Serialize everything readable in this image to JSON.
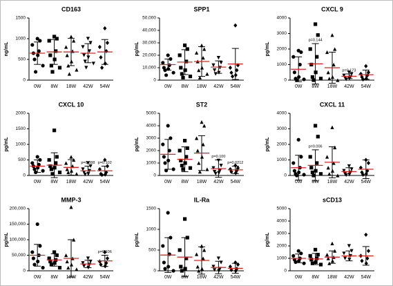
{
  "chart_data": [
    {
      "type": "dot",
      "title": "CD163",
      "ylabel": "ng/mL",
      "categories": [
        "0W",
        "8W",
        "18W",
        "42W",
        "54W"
      ],
      "ylim": [
        0,
        1500
      ],
      "yticks": [
        0,
        500,
        1000,
        1500
      ],
      "groups": [
        {
          "points": [
            1000,
            950,
            850,
            700,
            650,
            600,
            500,
            350,
            200
          ],
          "mean": 650,
          "sd": 270
        },
        {
          "points": [
            1050,
            1000,
            950,
            700,
            600,
            500,
            350,
            300,
            200
          ],
          "mean": 680,
          "sd": 300
        },
        {
          "points": [
            1050,
            950,
            800,
            700,
            600,
            450,
            350,
            250,
            150
          ],
          "mean": 680,
          "sd": 330
        },
        {
          "points": [
            1000,
            900,
            800,
            700,
            600,
            550,
            450,
            400,
            300
          ],
          "mean": 650,
          "sd": 230
        },
        {
          "points": [
            1250,
            900,
            800,
            700,
            550,
            400,
            300
          ],
          "mean": 680,
          "sd": 300
        }
      ]
    },
    {
      "type": "dot",
      "title": "SPP1",
      "ylabel": "pg/mL",
      "categories": [
        "0W",
        "8W",
        "18W",
        "42W",
        "54W"
      ],
      "ylim": [
        0,
        50000
      ],
      "yticks": [
        0,
        {
          "value": 10000,
          "label": "10,000"
        },
        {
          "value": 20000,
          "label": "20,000"
        },
        {
          "value": 30000,
          "label": "30,000"
        },
        {
          "value": 40000,
          "label": "40,000"
        },
        {
          "value": 50000,
          "label": "50,000"
        }
      ],
      "groups": [
        {
          "points": [
            20000,
            17000,
            14000,
            12000,
            10000,
            9000,
            8000,
            6000,
            4000
          ],
          "mean": 12500,
          "sd": 4500
        },
        {
          "points": [
            28000,
            25000,
            20000,
            15000,
            10000,
            8000,
            5000,
            3000,
            2000
          ],
          "mean": 14500,
          "sd": 10000
        },
        {
          "points": [
            28000,
            25000,
            22000,
            18000,
            15000,
            10000,
            8000,
            5000,
            2000
          ],
          "mean": 15000,
          "sd": 12000
        },
        {
          "points": [
            18000,
            14000,
            12000,
            10000,
            8000,
            6000,
            5000
          ],
          "mean": 10500,
          "sd": 5000
        },
        {
          "points": [
            44000,
            12000,
            10000,
            8000,
            6000,
            4000,
            3000
          ],
          "mean": 13000,
          "sd": 12500
        }
      ]
    },
    {
      "type": "dot",
      "title": "CXCL 9",
      "ylabel": "pg/mL",
      "categories": [
        "0W",
        "8W",
        "18W",
        "42W",
        "54W"
      ],
      "ylim": [
        0,
        4000
      ],
      "yticks": [
        0,
        1000,
        2000,
        3000,
        4000
      ],
      "groups": [
        {
          "points": [
            1900,
            1800,
            1500,
            1000,
            500,
            200,
            100,
            50,
            0
          ],
          "mean": 700,
          "sd": 800
        },
        {
          "points": [
            3600,
            2900,
            2000,
            1500,
            1000,
            500,
            200,
            100,
            0
          ],
          "mean": 1050,
          "sd": 1300
        },
        {
          "points": [
            2900,
            2000,
            1800,
            1000,
            500,
            200,
            100,
            0
          ],
          "mean": 800,
          "sd": 1000
        },
        {
          "points": [
            500,
            400,
            300,
            200,
            150,
            100,
            50
          ],
          "mean": 250,
          "sd": 150
        },
        {
          "points": [
            900,
            500,
            400,
            300,
            200,
            100,
            50
          ],
          "mean": 350,
          "sd": 300
        }
      ],
      "annotations": [
        {
          "category": "8W",
          "text": "p=0.144"
        },
        {
          "category": "42W",
          "text": "p=0.173"
        }
      ]
    },
    {
      "type": "dot",
      "title": "CXCL 10",
      "ylabel": "pg/mL",
      "categories": [
        "0W",
        "8W",
        "18W",
        "42W",
        "54W"
      ],
      "ylim": [
        0,
        2000
      ],
      "yticks": [
        0,
        500,
        1000,
        1500,
        2000
      ],
      "groups": [
        {
          "points": [
            600,
            500,
            400,
            350,
            300,
            250,
            200,
            150,
            100
          ],
          "mean": 300,
          "sd": 200
        },
        {
          "points": [
            1450,
            600,
            500,
            400,
            300,
            250,
            200,
            100,
            50
          ],
          "mean": 330,
          "sd": 400
        },
        {
          "points": [
            600,
            500,
            400,
            300,
            200,
            150,
            100,
            50
          ],
          "mean": 260,
          "sd": 250
        },
        {
          "points": [
            400,
            300,
            200,
            150,
            100,
            50,
            30
          ],
          "mean": 150,
          "sd": 150
        },
        {
          "points": [
            500,
            300,
            200,
            100,
            50,
            30,
            20
          ],
          "mean": 150,
          "sd": 150
        }
      ],
      "annotations": [
        {
          "category": "42W",
          "text": "p=0.088"
        },
        {
          "category": "54W",
          "text": "p=0.102"
        }
      ]
    },
    {
      "type": "dot",
      "title": "ST2",
      "ylabel": "pg/mL",
      "categories": [
        "0W",
        "8W",
        "18W",
        "42W",
        "54W"
      ],
      "ylim": [
        0,
        5000
      ],
      "yticks": [
        0,
        1000,
        2000,
        3000,
        4000,
        5000
      ],
      "groups": [
        {
          "points": [
            4000,
            3000,
            2500,
            2000,
            1500,
            1200,
            1000,
            500,
            400
          ],
          "mean": 1700,
          "sd": 1200
        },
        {
          "points": [
            2800,
            2200,
            2000,
            1500,
            1200,
            1000,
            800,
            600,
            500
          ],
          "mean": 1300,
          "sd": 1000
        },
        {
          "points": [
            4300,
            4000,
            3000,
            2500,
            2000,
            1500,
            1000,
            500,
            300
          ],
          "mean": 1800,
          "sd": 1400
        },
        {
          "points": [
            1200,
            800,
            600,
            400,
            300,
            200,
            150
          ],
          "mean": 550,
          "sd": 700
        },
        {
          "points": [
            800,
            600,
            500,
            400,
            300,
            200
          ],
          "mean": 450,
          "sd": 300
        }
      ],
      "annotations": [
        {
          "category": "42W",
          "text": "p=0.100"
        },
        {
          "category": "54W",
          "text": "p=0.0212"
        }
      ]
    },
    {
      "type": "dot",
      "title": "CXCL 11",
      "ylabel": "pg/mL",
      "categories": [
        "0W",
        "8W",
        "18W",
        "42W",
        "54W"
      ],
      "ylim": [
        0,
        4000
      ],
      "yticks": [
        0,
        1000,
        2000,
        3000,
        4000
      ],
      "groups": [
        {
          "points": [
            2300,
            1200,
            800,
            500,
            300,
            200,
            100,
            50,
            0
          ],
          "mean": 500,
          "sd": 800
        },
        {
          "points": [
            3200,
            2500,
            1200,
            800,
            500,
            300,
            200,
            100,
            0
          ],
          "mean": 650,
          "sd": 1000
        },
        {
          "points": [
            3100,
            1800,
            1200,
            800,
            500,
            300,
            100,
            0
          ],
          "mean": 850,
          "sd": 1000
        },
        {
          "points": [
            600,
            400,
            300,
            200,
            100,
            50,
            20
          ],
          "mean": 250,
          "sd": 250
        },
        {
          "points": [
            1000,
            800,
            500,
            300,
            200,
            100,
            50
          ],
          "mean": 400,
          "sd": 600
        }
      ],
      "annotations": [
        {
          "category": "8W",
          "text": "p=0.006"
        }
      ]
    },
    {
      "type": "dot",
      "title": "MMP-3",
      "ylabel": "pg/mL",
      "categories": [
        "0W",
        "8W",
        "18W",
        "42W",
        "54W"
      ],
      "ylim": [
        0,
        200000
      ],
      "yticks": [
        0,
        {
          "value": 50000,
          "label": "50,000"
        },
        {
          "value": 100000,
          "label": "100,000"
        },
        {
          "value": 150000,
          "label": "150,000"
        },
        {
          "value": 200000,
          "label": "200,000"
        }
      ],
      "groups": [
        {
          "points": [
            150000,
            80000,
            60000,
            50000,
            40000,
            30000,
            20000,
            10000
          ],
          "mean": 50000,
          "sd": 35000
        },
        {
          "points": [
            60000,
            50000,
            40000,
            35000,
            30000,
            25000,
            20000,
            10000
          ],
          "mean": 35000,
          "sd": 20000
        },
        {
          "points": [
            205000,
            100000,
            50000,
            40000,
            30000,
            20000,
            10000,
            5000
          ],
          "mean": 40000,
          "sd": 60000
        },
        {
          "points": [
            40000,
            30000,
            25000,
            20000,
            15000,
            10000
          ],
          "mean": 22000,
          "sd": 12000
        },
        {
          "points": [
            60000,
            40000,
            30000,
            25000,
            20000,
            15000
          ],
          "mean": 32000,
          "sd": 18000
        }
      ],
      "annotations": [
        {
          "category": "54W",
          "text": "p=0.106"
        }
      ]
    },
    {
      "type": "dot",
      "title": "IL-Ra",
      "ylabel": "pg/mL",
      "categories": [
        "0W",
        "8W",
        "18W",
        "42W",
        "54W"
      ],
      "ylim": [
        0,
        1500
      ],
      "yticks": [
        0,
        500,
        1000,
        1500
      ],
      "groups": [
        {
          "points": [
            1400,
            800,
            600,
            400,
            200,
            100,
            50,
            0
          ],
          "mean": 380,
          "sd": 420
        },
        {
          "points": [
            1250,
            800,
            500,
            300,
            100,
            50,
            0
          ],
          "mean": 330,
          "sd": 470
        },
        {
          "points": [
            600,
            500,
            400,
            300,
            100,
            50,
            0
          ],
          "mean": 250,
          "sd": 330
        },
        {
          "points": [
            300,
            200,
            100,
            50,
            20,
            0
          ],
          "mean": 80,
          "sd": 150
        },
        {
          "points": [
            200,
            150,
            100,
            50,
            20,
            0
          ],
          "mean": 60,
          "sd": 120
        }
      ]
    },
    {
      "type": "dot",
      "title": "sCD13",
      "ylabel": "pg/mL",
      "categories": [
        "0W",
        "8W",
        "18W",
        "42W",
        "54W"
      ],
      "ylim": [
        0,
        5000
      ],
      "yticks": [
        0,
        1000,
        2000,
        3000,
        4000,
        5000
      ],
      "groups": [
        {
          "points": [
            1600,
            1400,
            1200,
            1000,
            900,
            800,
            700,
            600
          ],
          "mean": 1000,
          "sd": 350
        },
        {
          "points": [
            1700,
            1300,
            1200,
            1000,
            900,
            700,
            600,
            500
          ],
          "mean": 950,
          "sd": 450
        },
        {
          "points": [
            2200,
            1600,
            1300,
            1100,
            1000,
            800,
            600
          ],
          "mean": 1100,
          "sd": 500
        },
        {
          "points": [
            2000,
            1600,
            1400,
            1200,
            1000,
            900
          ],
          "mean": 1200,
          "sd": 400
        },
        {
          "points": [
            2900,
            1600,
            1200,
            1000,
            800,
            600
          ],
          "mean": 1200,
          "sd": 750
        }
      ]
    }
  ]
}
